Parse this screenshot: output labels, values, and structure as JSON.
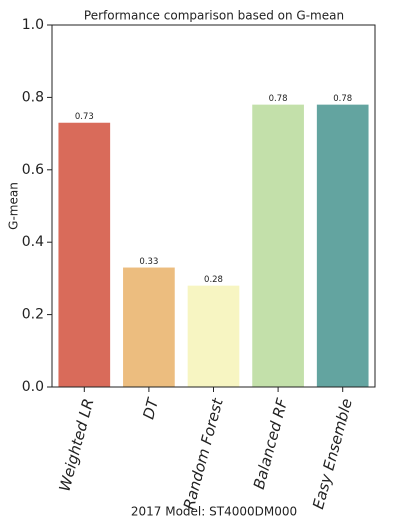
{
  "chart_data": {
    "type": "bar",
    "title": "Performance comparison based on G-mean",
    "x_label": "2017 Model: ST4000DM000",
    "y_label": "G-mean",
    "categories": [
      "Weighted LR",
      "DT",
      "Random Forest",
      "Balanced RF",
      "Easy Ensemble"
    ],
    "values": [
      0.73,
      0.33,
      0.28,
      0.78,
      0.78
    ],
    "colors": [
      "#d96b5a",
      "#ecbd7f",
      "#f7f5c2",
      "#c3e0aa",
      "#63a4a0"
    ],
    "ylim": [
      0,
      1
    ],
    "yticks": [
      {
        "value": 0,
        "label": "0.0"
      },
      0.2,
      0.4,
      0.6,
      0.8,
      {
        "value": 1,
        "label": "1.0"
      }
    ],
    "grid": false
  }
}
